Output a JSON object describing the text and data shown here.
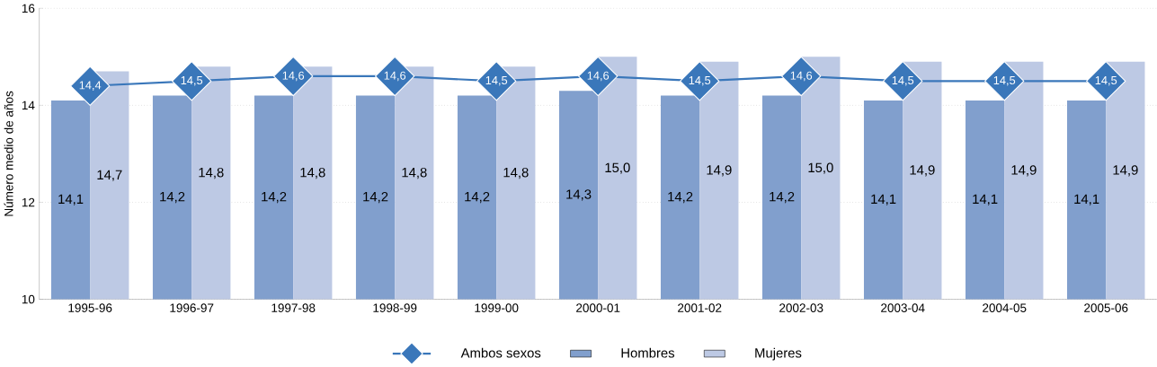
{
  "chart_data": {
    "type": "bar",
    "ylabel": "Número medio de años",
    "categories": [
      "1995-96",
      "1996-97",
      "1997-98",
      "1998-99",
      "1999-00",
      "2000-01",
      "2001-02",
      "2002-03",
      "2003-04",
      "2004-05",
      "2005-06"
    ],
    "series": [
      {
        "name": "Ambos sexos",
        "type": "line",
        "color": "#3a77ba",
        "values": [
          14.4,
          14.5,
          14.6,
          14.6,
          14.5,
          14.6,
          14.5,
          14.6,
          14.5,
          14.5,
          14.5
        ],
        "value_labels": [
          "14,4",
          "14,5",
          "14,6",
          "14,6",
          "14,5",
          "14,6",
          "14,5",
          "14,6",
          "14,5",
          "14,5",
          "14,5"
        ]
      },
      {
        "name": "Hombres",
        "color": "#819fcd",
        "values": [
          14.1,
          14.2,
          14.2,
          14.2,
          14.2,
          14.3,
          14.2,
          14.2,
          14.1,
          14.1,
          14.1
        ],
        "value_labels": [
          "14,1",
          "14,2",
          "14,2",
          "14,2",
          "14,2",
          "14,3",
          "14,2",
          "14,2",
          "14,1",
          "14,1",
          "14,1"
        ]
      },
      {
        "name": "Mujeres",
        "color": "#bdc9e4",
        "values": [
          14.7,
          14.8,
          14.8,
          14.8,
          14.8,
          15.0,
          14.9,
          15.0,
          14.9,
          14.9,
          14.9
        ],
        "value_labels": [
          "14,7",
          "14,8",
          "14,8",
          "14,8",
          "14,8",
          "15,0",
          "14,9",
          "15,0",
          "14,9",
          "14,9",
          "14,9"
        ]
      }
    ],
    "ylim": [
      10,
      16
    ],
    "yticks": [
      10,
      12,
      14,
      16
    ],
    "grid": "y",
    "legend": "bottom",
    "marker": "diamond",
    "line_style": "solid"
  }
}
